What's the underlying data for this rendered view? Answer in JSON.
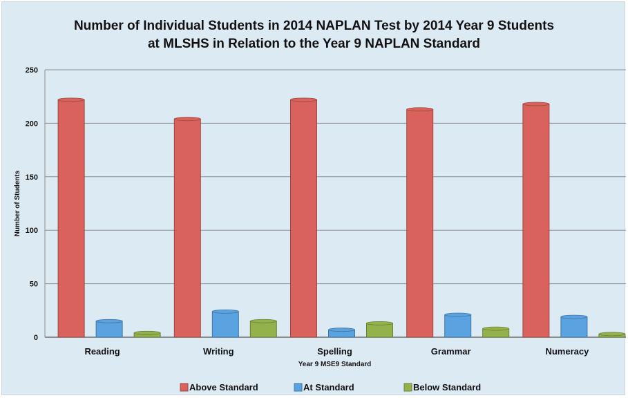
{
  "chart_data": {
    "type": "bar",
    "title_lines": [
      "Number of Individual Students in 2014 NAPLAN Test by 2014 Year 9 Students",
      "at MLSHS in Relation to the Year 9 NAPLAN Standard"
    ],
    "xlabel": "Year 9 MSE9 Standard",
    "ylabel": "Number of Students",
    "ylim": [
      0,
      250
    ],
    "yticks": [
      0,
      50,
      100,
      150,
      200,
      250
    ],
    "grid": true,
    "legend_position": "bottom",
    "categories": [
      "Reading",
      "Writing",
      "Spelling",
      "Grammar",
      "Numeracy"
    ],
    "series": [
      {
        "name": "Above Standard",
        "color": "#d9625c",
        "values": [
          222,
          204,
          222,
          213,
          218
        ]
      },
      {
        "name": "At Standard",
        "color": "#5aa2e0",
        "values": [
          15,
          24,
          7,
          21,
          19
        ]
      },
      {
        "name": "Below Standard",
        "color": "#94b24c",
        "values": [
          4,
          15,
          13,
          8,
          3
        ]
      }
    ]
  }
}
